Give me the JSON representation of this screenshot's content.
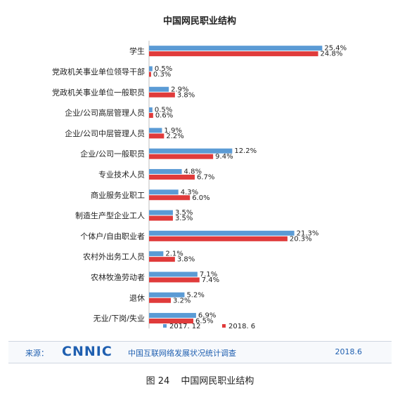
{
  "chart_data": {
    "type": "bar",
    "orientation": "horizontal",
    "title": "中国网民职业结构",
    "categories": [
      "学生",
      "党政机关事业单位领导干部",
      "党政机关事业单位一般职员",
      "企业/公司高层管理人员",
      "企业/公司中层管理人员",
      "企业/公司一般职员",
      "专业技术人员",
      "商业服务业职工",
      "制造生产型企业工人",
      "个体户/自由职业者",
      "农村外出务工人员",
      "农林牧渔劳动者",
      "退休",
      "无业/下岗/失业"
    ],
    "series": [
      {
        "name": "2017. 12",
        "color": "#5b9bd5",
        "values": [
          25.4,
          0.5,
          2.9,
          0.5,
          1.9,
          12.2,
          4.8,
          4.3,
          3.5,
          21.3,
          2.1,
          7.1,
          5.2,
          6.9
        ],
        "labels": [
          "25.4%",
          "0.5%",
          "2.9%",
          "0.5%",
          "1.9%",
          "12.2%",
          "4.8%",
          "4.3%",
          "3.5%",
          "21.3%",
          "2.1%",
          "7.1%",
          "5.2%",
          "6.9%"
        ]
      },
      {
        "name": "2018. 6",
        "color": "#e03b3b",
        "values": [
          24.8,
          0.3,
          3.8,
          0.6,
          2.2,
          9.4,
          6.7,
          6.0,
          3.5,
          20.3,
          3.8,
          7.4,
          3.2,
          6.5
        ],
        "labels": [
          "24.8%",
          "0.3%",
          "3.8%",
          "0.6%",
          "2.2%",
          "9.4%",
          "6.7%",
          "6.0%",
          "3.5%",
          "20.3%",
          "3.8%",
          "7.4%",
          "3.2%",
          "6.5%"
        ]
      }
    ],
    "xlim": [
      0,
      30
    ],
    "grid": false,
    "legend": "bottom"
  },
  "footer": {
    "source_label": "来源：",
    "logo": "CNNIC",
    "org": "中国互联网络发展状况统计调查",
    "date": "2018.6"
  },
  "caption": {
    "figure_no": "图 24",
    "title": "中国网民职业结构"
  }
}
